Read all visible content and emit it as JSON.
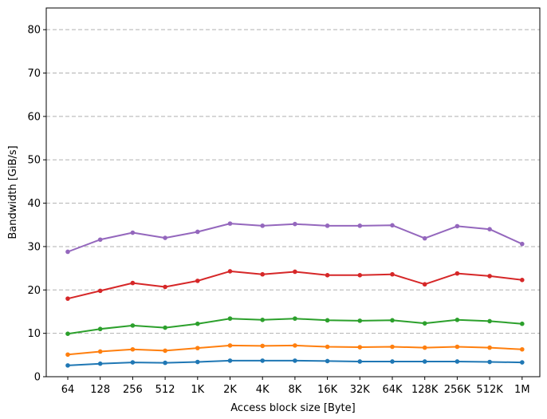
{
  "chart_data": {
    "type": "line",
    "xlabel": "Access block size [Byte]",
    "ylabel": "Bandwidth [GiB/s]",
    "categories": [
      "64",
      "128",
      "256",
      "512",
      "1K",
      "2K",
      "4K",
      "8K",
      "16K",
      "32K",
      "64K",
      "128K",
      "256K",
      "512K",
      "1M"
    ],
    "ylim": [
      0,
      85
    ],
    "yticks": [
      0,
      10,
      20,
      30,
      40,
      50,
      60,
      70,
      80
    ],
    "grid": "y dashed, values 10 to 80",
    "legend": "none",
    "series": [
      {
        "color": "#1f77b4",
        "values": [
          2.6,
          3.0,
          3.3,
          3.2,
          3.4,
          3.7,
          3.7,
          3.7,
          3.6,
          3.5,
          3.5,
          3.5,
          3.5,
          3.4,
          3.3
        ]
      },
      {
        "color": "#ff7f0e",
        "values": [
          5.1,
          5.8,
          6.3,
          6.0,
          6.6,
          7.2,
          7.1,
          7.2,
          6.9,
          6.8,
          6.9,
          6.7,
          6.9,
          6.7,
          6.3
        ]
      },
      {
        "color": "#2ca02c",
        "values": [
          9.9,
          11.0,
          11.8,
          11.3,
          12.2,
          13.4,
          13.1,
          13.4,
          13.0,
          12.9,
          13.0,
          12.3,
          13.1,
          12.8,
          12.2
        ]
      },
      {
        "color": "#d62728",
        "values": [
          18.0,
          19.8,
          21.6,
          20.7,
          22.1,
          24.3,
          23.6,
          24.2,
          23.4,
          23.4,
          23.6,
          21.3,
          23.8,
          23.2,
          22.3
        ]
      },
      {
        "color": "#9467bd",
        "values": [
          28.8,
          31.6,
          33.2,
          32.0,
          33.4,
          35.3,
          34.8,
          35.2,
          34.8,
          34.8,
          34.9,
          31.9,
          34.7,
          34.0,
          30.6
        ]
      }
    ]
  }
}
